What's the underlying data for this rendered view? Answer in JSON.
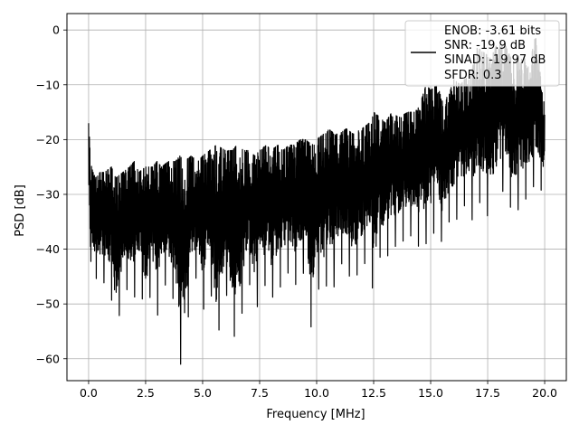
{
  "chart_data": {
    "type": "line",
    "title": "",
    "xlabel": "Frequency [MHz]",
    "ylabel": "PSD [dB]",
    "xlim": [
      -0.95,
      20.95
    ],
    "ylim": [
      -64,
      3
    ],
    "x_ticks": [
      0.0,
      2.5,
      5.0,
      7.5,
      10.0,
      12.5,
      15.0,
      17.5,
      20.0
    ],
    "x_tick_labels": [
      "0.0",
      "2.5",
      "5.0",
      "7.5",
      "10.0",
      "12.5",
      "15.0",
      "17.5",
      "20.0"
    ],
    "y_ticks": [
      0,
      -10,
      -20,
      -30,
      -40,
      -50,
      -60
    ],
    "y_tick_labels": [
      "0",
      "−10",
      "−20",
      "−30",
      "−40",
      "−50",
      "−60"
    ],
    "grid": true,
    "legend_position": "top-right",
    "legend": [
      "ENOB: -3.61 bits",
      "SNR: -19.9 dB",
      "SINAD: -19.97 dB",
      "SFDR: 0.3"
    ],
    "series": [
      {
        "color": "#000000",
        "x": [
          0.0,
          0.1,
          0.2,
          0.3,
          0.5,
          0.7,
          1.0,
          1.2,
          1.5,
          1.8,
          2.0,
          2.2,
          2.5,
          2.8,
          3.0,
          3.2,
          3.5,
          3.8,
          4.0,
          4.2,
          4.5,
          4.8,
          5.0,
          5.3,
          5.6,
          6.0,
          6.3,
          6.5,
          6.8,
          7.0,
          7.3,
          7.5,
          7.8,
          8.0,
          8.3,
          8.5,
          8.8,
          9.0,
          9.3,
          9.5,
          9.8,
          10.0,
          10.3,
          10.5,
          10.8,
          11.0,
          11.3,
          11.6,
          12.0,
          12.3,
          12.5,
          12.8,
          13.0,
          13.3,
          13.6,
          14.0,
          14.3,
          14.5,
          14.8,
          15.0,
          15.3,
          15.5,
          15.8,
          16.0,
          16.3,
          16.5,
          16.8,
          17.0,
          17.3,
          17.6,
          18.0,
          18.3,
          18.6,
          19.0,
          19.3,
          19.6,
          20.0
        ],
        "upper": [
          -17,
          -24,
          -26,
          -27,
          -26,
          -26,
          -25,
          -27,
          -26,
          -25,
          -24,
          -26,
          -25,
          -25,
          -24,
          -25,
          -24,
          -24,
          -23,
          -24,
          -23,
          -24,
          -23,
          -22,
          -21,
          -22,
          -22,
          -21,
          -22,
          -22,
          -23,
          -22,
          -21,
          -22,
          -21,
          -22,
          -21,
          -21,
          -20,
          -20,
          -21,
          -20,
          -19,
          -18,
          -19,
          -19,
          -18,
          -19,
          -18,
          -17,
          -15,
          -16,
          -17,
          -15,
          -16,
          -15,
          -15,
          -14,
          -10,
          -11,
          -10,
          -13,
          -12,
          -9,
          -10,
          -9,
          -8,
          -3,
          -4,
          -5,
          -2,
          -3,
          -6,
          -4,
          -7,
          -1,
          -14
        ],
        "lower": [
          -34,
          -48,
          -46,
          -45,
          -47,
          -46,
          -49,
          -56,
          -48,
          -47,
          -49,
          -46,
          -52,
          -47,
          -53,
          -46,
          -47,
          -50,
          -61,
          -61,
          -46,
          -45,
          -52,
          -45,
          -58,
          -47,
          -55,
          -57,
          -50,
          -45,
          -52,
          -49,
          -46,
          -49,
          -48,
          -46,
          -44,
          -47,
          -45,
          -44,
          -56,
          -47,
          -48,
          -46,
          -47,
          -42,
          -44,
          -46,
          -43,
          -42,
          -49,
          -41,
          -42,
          -40,
          -39,
          -38,
          -37,
          -40,
          -39,
          -38,
          -36,
          -39,
          -35,
          -36,
          -33,
          -32,
          -35,
          -31,
          -32,
          -35,
          -30,
          -29,
          -34,
          -32,
          -30,
          -28,
          -30
        ]
      }
    ]
  }
}
